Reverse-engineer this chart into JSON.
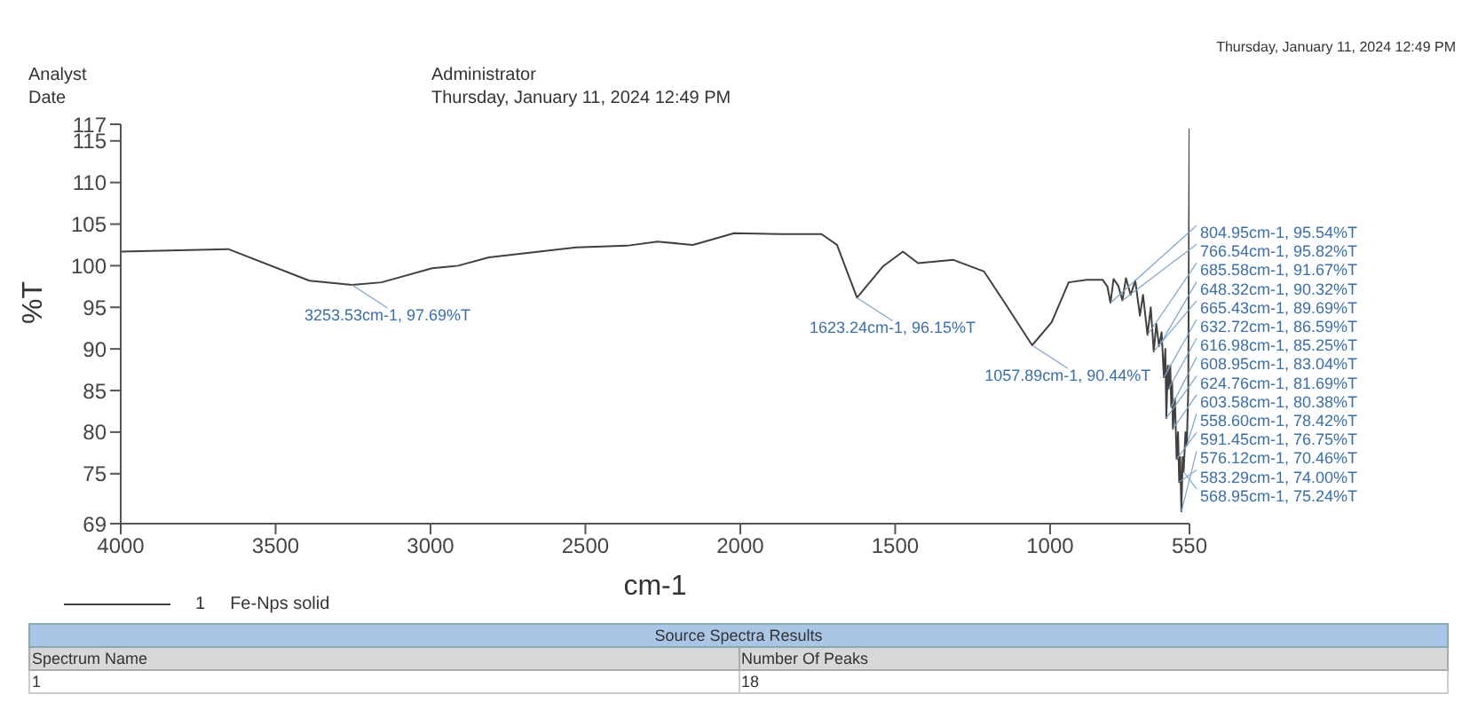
{
  "chart_data": {
    "type": "line",
    "xlabel": "cm-1",
    "ylabel": "%T",
    "xlim": [
      4000,
      550
    ],
    "xticks": [
      4000,
      3500,
      3000,
      2500,
      2000,
      1500,
      1000,
      550
    ],
    "ylim": [
      69,
      117
    ],
    "yticks": [
      69,
      75,
      80,
      85,
      90,
      95,
      100,
      105,
      110,
      115,
      117
    ],
    "grid": false,
    "legend": "bottom",
    "marker": "none",
    "line_style": "solid",
    "series": [
      {
        "name": "Fe-Nps solid",
        "color": "#404040",
        "x": [
          4000,
          3653,
          3391,
          3253.53,
          3158,
          2995,
          2911,
          2812,
          2530,
          2366,
          2267,
          2153,
          2020,
          1871,
          1738,
          1688,
          1623.24,
          1540,
          1475,
          1426,
          1312,
          1213,
          1144,
          1057.89,
          995,
          940,
          881,
          830,
          815,
          804.95,
          795,
          780,
          766.54,
          755,
          740,
          725,
          710,
          700,
          685.58,
          675,
          665.43,
          657,
          648.32,
          640,
          632.72,
          628,
          624.76,
          620,
          616.98,
          612,
          608.95,
          606,
          603.58,
          597,
          591.45,
          587,
          583.29,
          580,
          576.12,
          572,
          568.95,
          563,
          558.6,
          554,
          550
        ],
        "values": [
          101.7,
          102.0,
          98.2,
          97.69,
          98.0,
          99.7,
          100.0,
          101.0,
          102.2,
          102.4,
          102.9,
          102.5,
          103.9,
          103.8,
          103.8,
          102.5,
          96.15,
          99.9,
          101.7,
          100.3,
          100.7,
          99.3,
          95.4,
          90.44,
          93.2,
          98.0,
          98.3,
          98.3,
          97.5,
          95.54,
          98.4,
          97.6,
          95.82,
          98.5,
          96.5,
          98.2,
          94.0,
          96.5,
          91.67,
          95.0,
          89.69,
          93.0,
          90.32,
          92.0,
          86.59,
          90.0,
          81.69,
          88.0,
          85.25,
          88.0,
          83.04,
          86.0,
          80.38,
          84.0,
          76.75,
          80.0,
          74.0,
          77.0,
          70.46,
          77.0,
          75.24,
          80.0,
          78.42,
          85.0,
          116.5
        ]
      }
    ],
    "annotations": [
      "Analyst",
      "Date",
      "Administrator",
      "Thursday, January 11, 2024 12:49 PM",
      "Thursday, January 11, 2024 12:49 PM",
      "1",
      "Source Spectra Results",
      "Spectrum Name",
      "Number Of Peaks",
      "1",
      "18",
      {
        "text": "3253.53cm-1, 97.69%T",
        "x": 3253.53,
        "y": 97.69
      },
      {
        "text": "1623.24cm-1, 96.15%T",
        "x": 1623.24,
        "y": 96.15
      },
      {
        "text": "1057.89cm-1, 90.44%T",
        "x": 1057.89,
        "y": 90.44
      },
      {
        "text": "804.95cm-1, 95.54%T",
        "x": 804.95,
        "y": 95.54
      },
      {
        "text": "766.54cm-1, 95.82%T",
        "x": 766.54,
        "y": 95.82
      },
      {
        "text": "685.58cm-1, 91.67%T",
        "x": 685.58,
        "y": 91.67
      },
      {
        "text": "648.32cm-1, 90.32%T",
        "x": 648.32,
        "y": 90.32
      },
      {
        "text": "665.43cm-1, 89.69%T",
        "x": 665.43,
        "y": 89.69
      },
      {
        "text": "632.72cm-1, 86.59%T",
        "x": 632.72,
        "y": 86.59
      },
      {
        "text": "616.98cm-1, 85.25%T",
        "x": 616.98,
        "y": 85.25
      },
      {
        "text": "608.95cm-1, 83.04%T",
        "x": 608.95,
        "y": 83.04
      },
      {
        "text": "624.76cm-1, 81.69%T",
        "x": 624.76,
        "y": 81.69
      },
      {
        "text": "603.58cm-1, 80.38%T",
        "x": 603.58,
        "y": 80.38
      },
      {
        "text": "558.60cm-1, 78.42%T",
        "x": 558.6,
        "y": 78.42
      },
      {
        "text": "591.45cm-1, 76.75%T",
        "x": 591.45,
        "y": 76.75
      },
      {
        "text": "576.12cm-1, 70.46%T",
        "x": 576.12,
        "y": 70.46
      },
      {
        "text": "583.29cm-1, 74.00%T",
        "x": 583.29,
        "y": 74.0
      },
      {
        "text": "568.95cm-1, 75.24%T",
        "x": 568.95,
        "y": 75.24
      }
    ]
  }
}
